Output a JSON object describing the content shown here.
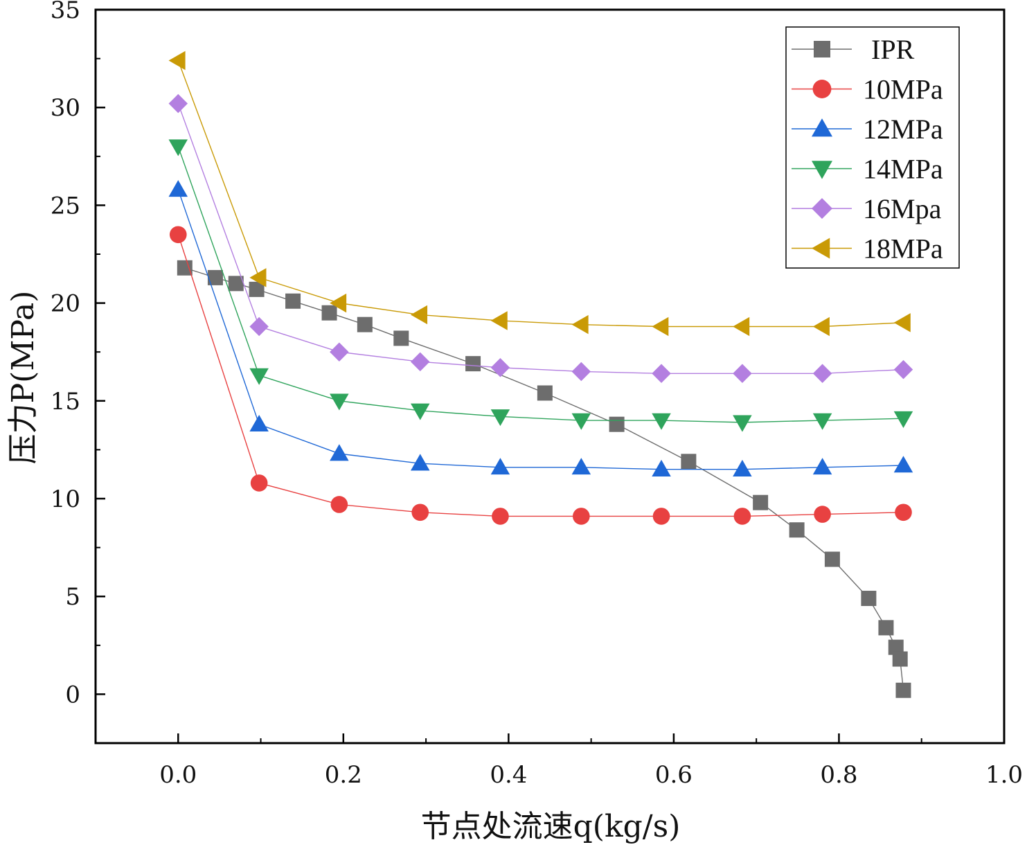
{
  "chart_data": {
    "type": "line",
    "title": "",
    "xlabel": "节点处流速q(kg/s)",
    "ylabel": "压力P(MPa)",
    "xlim": [
      -0.1,
      1.0
    ],
    "ylim": [
      -2.5,
      35
    ],
    "x_ticks": [
      0.0,
      0.2,
      0.4,
      0.6,
      0.8,
      1.0
    ],
    "x_tick_labels": [
      "0.0",
      "0.2",
      "0.4",
      "0.6",
      "0.8",
      "1.0"
    ],
    "y_ticks": [
      0,
      5,
      10,
      15,
      20,
      25,
      30,
      35
    ],
    "y_tick_labels": [
      "0",
      "5",
      "10",
      "15",
      "20",
      "25",
      "30",
      "35"
    ],
    "grid": false,
    "legend_position": "top-right",
    "series": [
      {
        "name": "IPR",
        "color": "#6d6d6d",
        "marker": "square",
        "x": [
          0.008,
          0.045,
          0.07,
          0.095,
          0.139,
          0.183,
          0.226,
          0.27,
          0.357,
          0.444,
          0.531,
          0.618,
          0.705,
          0.749,
          0.792,
          0.836,
          0.857,
          0.869,
          0.874,
          0.878
        ],
        "y": [
          21.8,
          21.3,
          21.0,
          20.7,
          20.1,
          19.5,
          18.9,
          18.2,
          16.9,
          15.4,
          13.8,
          11.9,
          9.8,
          8.4,
          6.9,
          4.9,
          3.4,
          2.4,
          1.8,
          0.2
        ]
      },
      {
        "name": "10MPa",
        "color": "#e84141",
        "marker": "circle",
        "x": [
          0.0,
          0.098,
          0.195,
          0.293,
          0.39,
          0.488,
          0.585,
          0.683,
          0.78,
          0.878
        ],
        "y": [
          23.5,
          10.8,
          9.7,
          9.3,
          9.1,
          9.1,
          9.1,
          9.1,
          9.2,
          9.3
        ]
      },
      {
        "name": "12MPa",
        "color": "#1f68d6",
        "marker": "triangle-up",
        "x": [
          0.0,
          0.098,
          0.195,
          0.293,
          0.39,
          0.488,
          0.585,
          0.683,
          0.78,
          0.878
        ],
        "y": [
          25.8,
          13.8,
          12.3,
          11.8,
          11.6,
          11.6,
          11.5,
          11.5,
          11.6,
          11.7
        ]
      },
      {
        "name": "14MPa",
        "color": "#2fa45c",
        "marker": "triangle-down",
        "x": [
          0.0,
          0.098,
          0.195,
          0.293,
          0.39,
          0.488,
          0.585,
          0.683,
          0.78,
          0.878
        ],
        "y": [
          28.0,
          16.3,
          15.0,
          14.5,
          14.2,
          14.0,
          14.0,
          13.9,
          14.0,
          14.1
        ]
      },
      {
        "name": "16Mpa",
        "color": "#b37fe0",
        "marker": "diamond",
        "x": [
          0.0,
          0.098,
          0.195,
          0.293,
          0.39,
          0.488,
          0.585,
          0.683,
          0.78,
          0.878
        ],
        "y": [
          30.2,
          18.8,
          17.5,
          17.0,
          16.7,
          16.5,
          16.4,
          16.4,
          16.4,
          16.6
        ]
      },
      {
        "name": "18MPa",
        "color": "#c99a06",
        "marker": "triangle-left",
        "x": [
          0.0,
          0.098,
          0.195,
          0.293,
          0.39,
          0.488,
          0.585,
          0.683,
          0.78,
          0.878
        ],
        "y": [
          32.4,
          21.3,
          20.0,
          19.4,
          19.1,
          18.9,
          18.8,
          18.8,
          18.8,
          19.0
        ]
      }
    ]
  }
}
